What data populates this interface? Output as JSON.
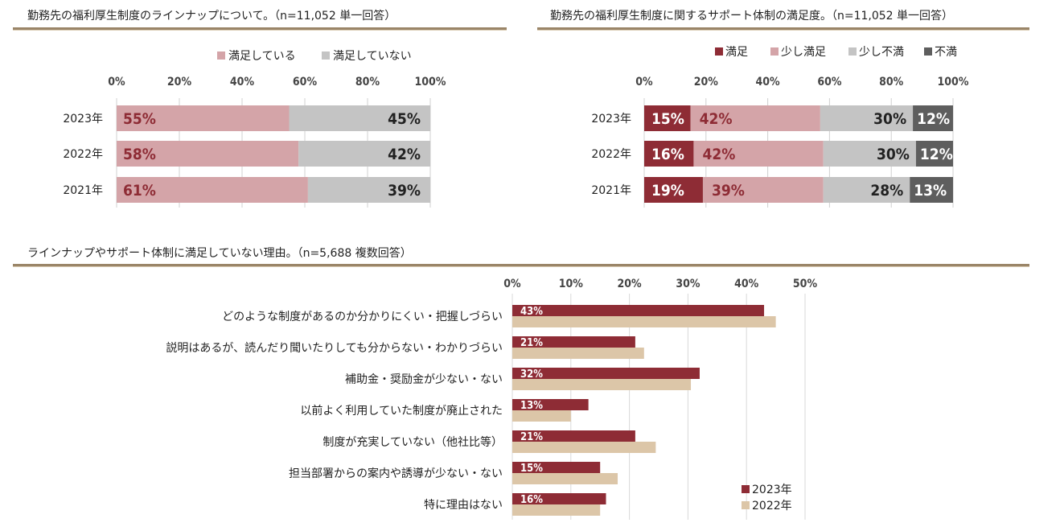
{
  "titles": {
    "chart1": "勤務先の福利厚生制度のラインナップについて。（n=11,052 単一回答）",
    "chart2": "勤務先の福利厚生制度に関するサポート体制の満足度。（n=11,052 単一回答）",
    "chart3": "ラインナップやサポート体制に満足していない理由。（n=5,688 複数回答）"
  },
  "colors": {
    "satisfied_pink": "#d4a4a8",
    "gray": "#c4c4c4",
    "dark_red": "#8e2c35",
    "dark_gray": "#5e5e5e",
    "tan": "#dcc6a8",
    "rule": "#9a8568"
  },
  "chart_data": [
    {
      "id": "lineup",
      "type": "bar",
      "orientation": "horizontal",
      "stacked": true,
      "categories": [
        "2023年",
        "2022年",
        "2021年"
      ],
      "series": [
        {
          "name": "満足している",
          "values": [
            55,
            58,
            61
          ],
          "labels": [
            "55%",
            "58%",
            "61%"
          ]
        },
        {
          "name": "満足していない",
          "values": [
            45,
            42,
            39
          ],
          "labels": [
            "45%",
            "42%",
            "39%"
          ]
        }
      ],
      "xlim": [
        0,
        100
      ],
      "xticks": [
        "0%",
        "20%",
        "40%",
        "60%",
        "80%",
        "100%"
      ],
      "legend": "top"
    },
    {
      "id": "support",
      "type": "bar",
      "orientation": "horizontal",
      "stacked": true,
      "categories": [
        "2023年",
        "2022年",
        "2021年"
      ],
      "series": [
        {
          "name": "満足",
          "values": [
            15,
            16,
            19
          ],
          "labels": [
            "15%",
            "16%",
            "19%"
          ]
        },
        {
          "name": "少し満足",
          "values": [
            42,
            42,
            39
          ],
          "labels": [
            "42%",
            "42%",
            "39%"
          ]
        },
        {
          "name": "少し不満",
          "values": [
            30,
            30,
            28
          ],
          "labels": [
            "30%",
            "30%",
            "28%"
          ]
        },
        {
          "name": "不満",
          "values": [
            12,
            12,
            13
          ],
          "labels": [
            "12%",
            "12%",
            "13%"
          ]
        }
      ],
      "xlim": [
        0,
        100
      ],
      "xticks": [
        "0%",
        "20%",
        "40%",
        "60%",
        "80%",
        "100%"
      ],
      "legend": "top"
    },
    {
      "id": "reasons",
      "type": "bar",
      "orientation": "horizontal",
      "categories": [
        "どのような制度があるのか分かりにくい・把握しづらい",
        "説明はあるが、読んだり聞いたりしても分からない・わかりづらい",
        "補助金・奨励金が少ない・ない",
        "以前よく利用していた制度が廃止された",
        "制度が充実していない（他社比等）",
        "担当部署からの案内や誘導が少ない・ない",
        "特に理由はない"
      ],
      "series": [
        {
          "name": "2023年",
          "values": [
            43,
            21,
            32,
            13,
            21,
            15,
            16
          ],
          "labels": [
            "43%",
            "21%",
            "32%",
            "13%",
            "21%",
            "15%",
            "16%"
          ]
        },
        {
          "name": "2022年",
          "values": [
            45,
            22.5,
            30.5,
            10,
            24.5,
            18,
            15
          ]
        }
      ],
      "xlim": [
        0,
        50
      ],
      "xticks": [
        "0%",
        "10%",
        "20%",
        "30%",
        "40%",
        "50%"
      ],
      "legend": "bottom-right"
    }
  ]
}
